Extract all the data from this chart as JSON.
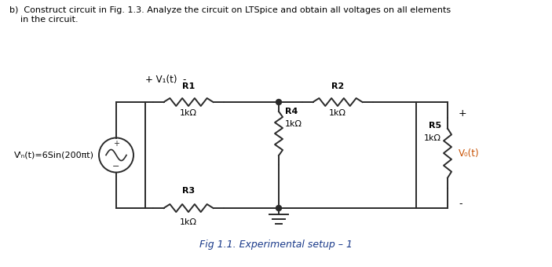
{
  "bg_color": "#ffffff",
  "title_text": "b)  Construct circuit in Fig. 1.3. Analyze the circuit on LTSpice and obtain all voltages on all elements\n    in the circuit.",
  "title_color": "#000000",
  "title_fontsize": 8.0,
  "fig_caption": "Fig 1.1. Experimental setup – 1",
  "fig_caption_color": "#1a3a8a",
  "circuit_color": "#2a2a2a",
  "label_color": "#000000",
  "vo_label_color": "#c85000",
  "vin_label": "Vᴵₙ(t)=6Sin(200πt)",
  "v1_label": "+ V₁(t)  -",
  "r1_label": "R1",
  "r1_val": "1kΩ",
  "r2_label": "R2",
  "r2_val": "1kΩ",
  "r3_label": "R3",
  "r3_val": "1kΩ",
  "r4_label": "R4",
  "r4_val": "1kΩ",
  "r5_label": "R5",
  "r5_val": "1kΩ",
  "vo_label": "V₀(t)",
  "plus_sign": "+",
  "minus_sign": "-"
}
